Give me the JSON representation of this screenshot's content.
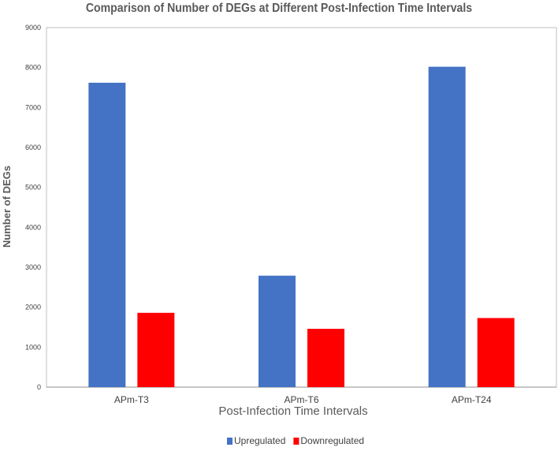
{
  "chart_data": {
    "type": "bar",
    "title": "Comparison of Number of DEGs at Different Post-Infection Time Intervals",
    "xlabel": "Post-Infection Time Intervals",
    "ylabel": "Number of DEGs",
    "categories": [
      "APm-T3",
      "APm-T6",
      "APm-T24"
    ],
    "series": [
      {
        "name": "Upregulated",
        "color": "#4472c4",
        "values": [
          7620,
          2790,
          8020
        ]
      },
      {
        "name": "Downregulated",
        "color": "#ff0000",
        "values": [
          1860,
          1460,
          1730
        ]
      }
    ],
    "ylim": [
      0,
      9000
    ],
    "yticks": [
      0,
      1000,
      2000,
      3000,
      4000,
      5000,
      6000,
      7000,
      8000,
      9000
    ],
    "grid": false,
    "legend_position": "bottom-center"
  }
}
